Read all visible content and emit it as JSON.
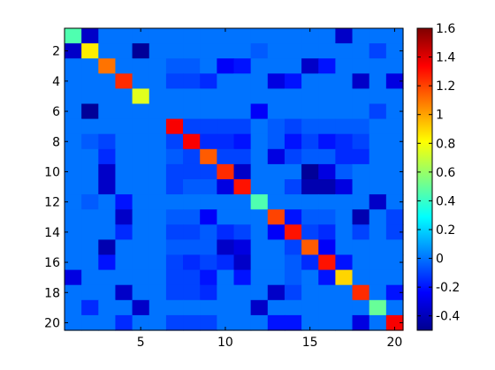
{
  "chart_data": {
    "type": "heatmap",
    "title": "",
    "xlabel": "",
    "ylabel": "",
    "rows": 20,
    "cols": 20,
    "x_ticks": [
      "5",
      "10",
      "15",
      "20"
    ],
    "y_ticks": [
      "2",
      "4",
      "6",
      "8",
      "10",
      "12",
      "14",
      "16",
      "18",
      "20"
    ],
    "colorbar": {
      "colormap": "jet",
      "range": [
        -0.5,
        1.6
      ],
      "ticks": [
        "1.6",
        "1.4",
        "1.2",
        "1",
        "0.8",
        "0.6",
        "0.4",
        "0.2",
        "0",
        "-0.2",
        "-0.4"
      ],
      "tick_values": [
        1.6,
        1.4,
        1.2,
        1.0,
        0.8,
        0.6,
        0.4,
        0.2,
        0.0,
        -0.2,
        -0.4
      ]
    },
    "values": [
      [
        0.45,
        -0.35,
        0,
        0,
        0,
        0,
        0,
        0,
        0,
        0,
        0,
        0,
        0,
        0,
        0,
        0,
        -0.35,
        0,
        0,
        0
      ],
      [
        -0.35,
        0.85,
        0,
        0,
        -0.45,
        0,
        0,
        0,
        0,
        0,
        0,
        -0.05,
        0,
        0,
        0,
        0,
        0,
        0,
        -0.1,
        0
      ],
      [
        0,
        0,
        1.1,
        0,
        0,
        0,
        -0.05,
        -0.05,
        0,
        -0.25,
        -0.2,
        0,
        0,
        0,
        -0.35,
        -0.2,
        0,
        0,
        0,
        0
      ],
      [
        0,
        0,
        0,
        1.25,
        0,
        0,
        -0.1,
        -0.1,
        -0.15,
        0,
        0,
        0,
        -0.3,
        -0.2,
        0,
        0,
        0,
        -0.35,
        0,
        -0.3
      ],
      [
        0,
        0,
        0,
        0,
        0.75,
        0,
        0,
        0,
        0,
        0,
        0,
        0,
        0,
        0,
        0,
        0,
        0,
        0,
        0,
        0
      ],
      [
        0,
        -0.45,
        0,
        0,
        0,
        0,
        0,
        0,
        0,
        0,
        0,
        -0.25,
        0,
        0,
        0,
        0,
        0,
        0,
        -0.1,
        0
      ],
      [
        0,
        0,
        0,
        0,
        0,
        0,
        1.35,
        -0.1,
        -0.1,
        -0.1,
        -0.1,
        0,
        -0.05,
        -0.1,
        -0.05,
        -0.05,
        -0.05,
        -0.05,
        0,
        0
      ],
      [
        0,
        -0.05,
        -0.1,
        0,
        0,
        0,
        -0.1,
        1.35,
        -0.15,
        -0.15,
        -0.2,
        0,
        -0.05,
        -0.2,
        -0.1,
        -0.2,
        -0.15,
        -0.1,
        0,
        0
      ],
      [
        0,
        0,
        -0.15,
        0,
        0,
        0,
        -0.05,
        -0.1,
        1.15,
        -0.1,
        -0.1,
        0,
        -0.3,
        -0.1,
        -0.05,
        -0.05,
        -0.15,
        -0.15,
        0,
        0
      ],
      [
        0,
        0,
        -0.35,
        0,
        0,
        0,
        -0.1,
        -0.1,
        -0.1,
        1.25,
        -0.35,
        0,
        0,
        0,
        -0.45,
        -0.3,
        -0.05,
        0,
        0,
        0
      ],
      [
        0,
        0,
        -0.35,
        0,
        0,
        0,
        -0.1,
        -0.05,
        -0.05,
        -0.3,
        1.3,
        0,
        0,
        -0.1,
        -0.4,
        -0.4,
        -0.3,
        0,
        0,
        0
      ],
      [
        0,
        -0.05,
        0,
        -0.2,
        0,
        0,
        0,
        0,
        0,
        0,
        0,
        0.45,
        0,
        0,
        0,
        0,
        0,
        0,
        -0.35,
        0
      ],
      [
        0,
        0,
        0,
        -0.35,
        0,
        0,
        -0.05,
        -0.05,
        -0.25,
        0,
        0,
        0,
        1.2,
        -0.2,
        -0.05,
        -0.05,
        0,
        -0.4,
        0,
        -0.1
      ],
      [
        0,
        0,
        0,
        -0.15,
        0,
        0,
        -0.1,
        -0.1,
        -0.05,
        -0.15,
        -0.1,
        0,
        -0.25,
        1.3,
        -0.1,
        -0.15,
        0,
        -0.1,
        0,
        -0.1
      ],
      [
        0,
        0,
        -0.4,
        0,
        0,
        0,
        -0.05,
        -0.05,
        -0.05,
        -0.35,
        -0.3,
        0,
        0,
        -0.1,
        1.15,
        -0.25,
        0,
        0,
        0,
        0
      ],
      [
        0,
        0,
        -0.2,
        0,
        0,
        0,
        -0.1,
        -0.15,
        -0.1,
        -0.15,
        -0.35,
        0,
        0,
        -0.05,
        -0.15,
        1.3,
        -0.2,
        0,
        0,
        0
      ],
      [
        -0.3,
        0,
        0,
        0,
        0,
        0,
        -0.1,
        -0.1,
        -0.2,
        0,
        -0.2,
        0,
        0,
        -0.05,
        0,
        -0.2,
        0.9,
        0,
        0,
        0
      ],
      [
        0,
        0,
        0,
        -0.35,
        0,
        0,
        -0.1,
        -0.1,
        -0.15,
        0,
        0,
        0,
        -0.35,
        -0.1,
        0,
        0,
        0,
        1.25,
        0,
        -0.2
      ],
      [
        0,
        -0.15,
        0,
        0,
        -0.35,
        0,
        0,
        0,
        0,
        0,
        0,
        -0.35,
        0,
        0,
        0,
        0,
        0,
        0,
        0.5,
        0
      ],
      [
        0,
        0,
        0,
        -0.15,
        0,
        0,
        -0.1,
        -0.1,
        -0.1,
        0,
        0,
        0,
        -0.2,
        -0.2,
        0,
        0,
        0,
        -0.3,
        0,
        1.35
      ]
    ]
  }
}
